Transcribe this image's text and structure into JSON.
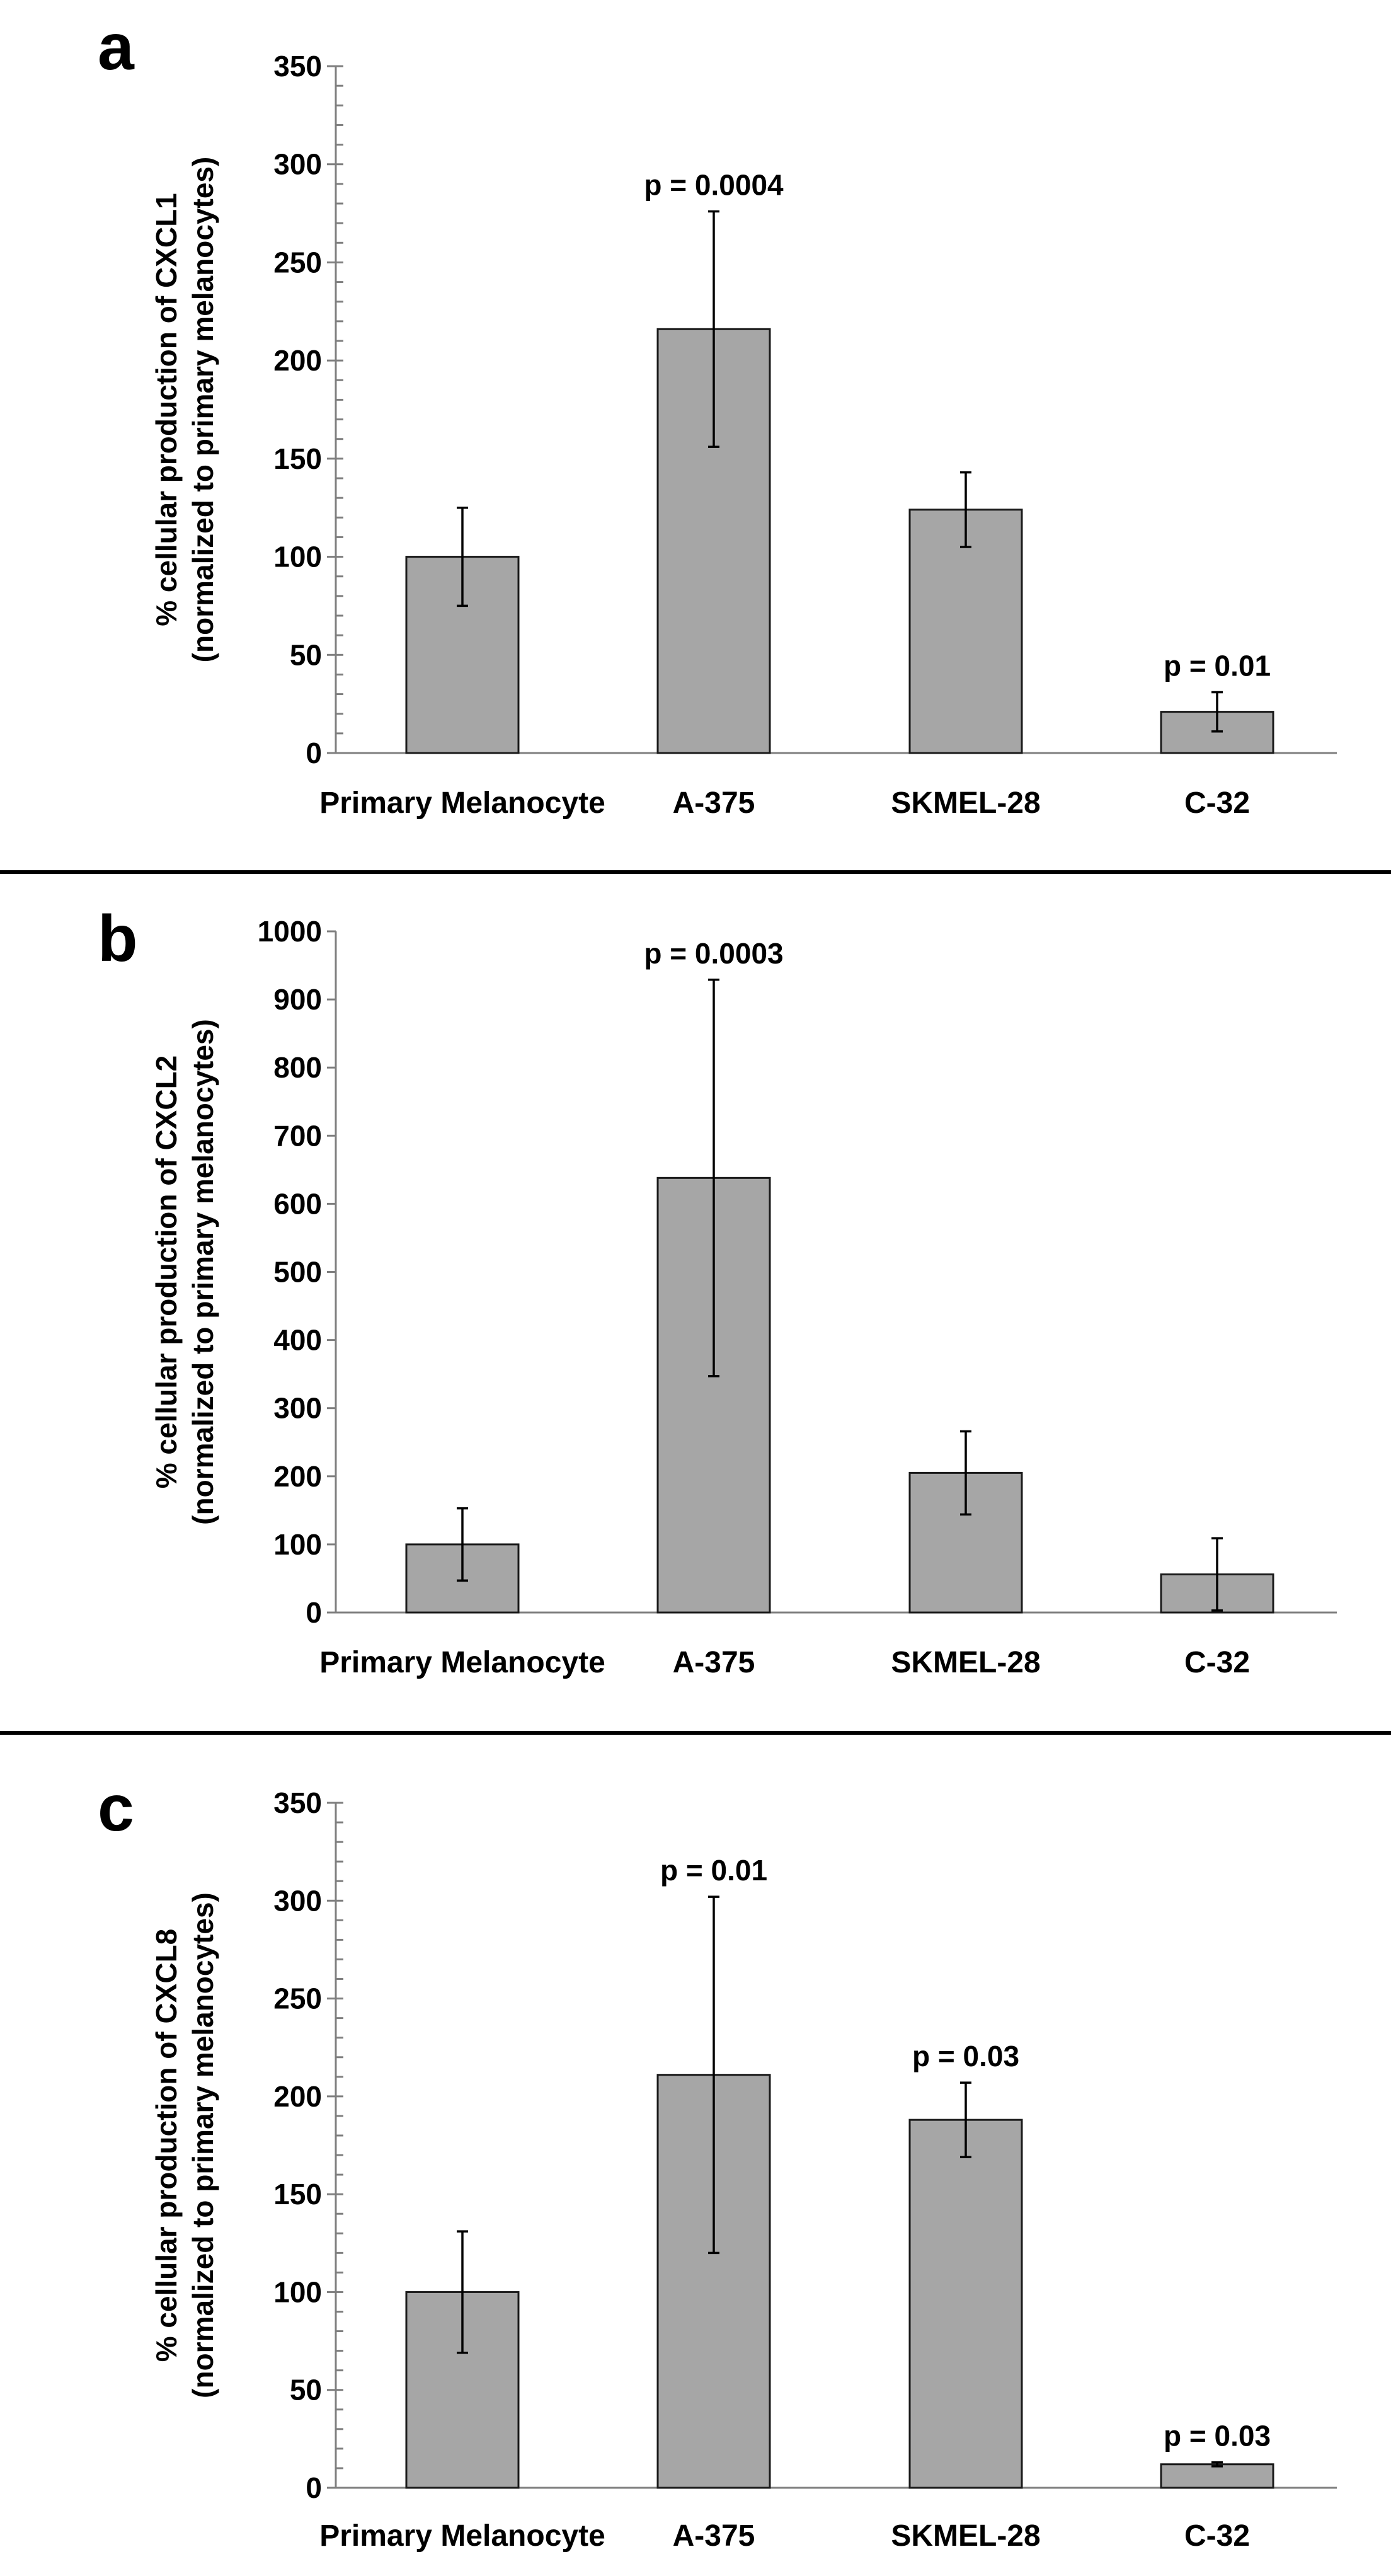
{
  "chart_data": [
    {
      "type": "bar",
      "panel_label": "a",
      "ylabel": [
        "% cellular production of CXCL1",
        "(normalized to primary melanocytes)"
      ],
      "xlabel": "",
      "categories": [
        "Primary Melanocyte",
        "A-375",
        "SKMEL-28",
        "C-32"
      ],
      "values": [
        100,
        216,
        124,
        21
      ],
      "errors": [
        25,
        60,
        19,
        10
      ],
      "annotations": [
        "",
        "p = 0.0004",
        "",
        "p = 0.01"
      ],
      "ylim": [
        0,
        350
      ],
      "yticks": [
        0,
        50,
        100,
        150,
        200,
        250,
        300,
        350
      ],
      "minor_step": 10,
      "colors": {
        "bar": "#a6a6a6",
        "edge": "#1a1a1a"
      }
    },
    {
      "type": "bar",
      "panel_label": "b",
      "ylabel": [
        "% cellular production of CXCL2",
        "(normalized to primary melanocytes)"
      ],
      "xlabel": "",
      "categories": [
        "Primary Melanocyte",
        "A-375",
        "SKMEL-28",
        "C-32"
      ],
      "values": [
        100,
        638,
        205,
        56
      ],
      "errors": [
        53,
        291,
        61,
        53
      ],
      "annotations": [
        "",
        "p = 0.0003",
        "",
        ""
      ],
      "ylim": [
        0,
        1000
      ],
      "yticks": [
        0,
        100,
        200,
        300,
        400,
        500,
        600,
        700,
        800,
        900,
        1000
      ],
      "minor_step": null,
      "colors": {
        "bar": "#a6a6a6",
        "edge": "#1a1a1a"
      }
    },
    {
      "type": "bar",
      "panel_label": "c",
      "ylabel": [
        "% cellular production of CXCL8",
        "(normalized to primary melanocytes)"
      ],
      "xlabel": "",
      "categories": [
        "Primary Melanocyte",
        "A-375",
        "SKMEL-28",
        "C-32"
      ],
      "values": [
        100,
        211,
        188,
        12
      ],
      "errors": [
        31,
        91,
        19,
        1
      ],
      "annotations": [
        "",
        "p = 0.01",
        "p = 0.03",
        "p = 0.03"
      ],
      "ylim": [
        0,
        350
      ],
      "yticks": [
        0,
        50,
        100,
        150,
        200,
        250,
        300,
        350
      ],
      "minor_step": 10,
      "colors": {
        "bar": "#a6a6a6",
        "edge": "#1a1a1a"
      }
    }
  ]
}
